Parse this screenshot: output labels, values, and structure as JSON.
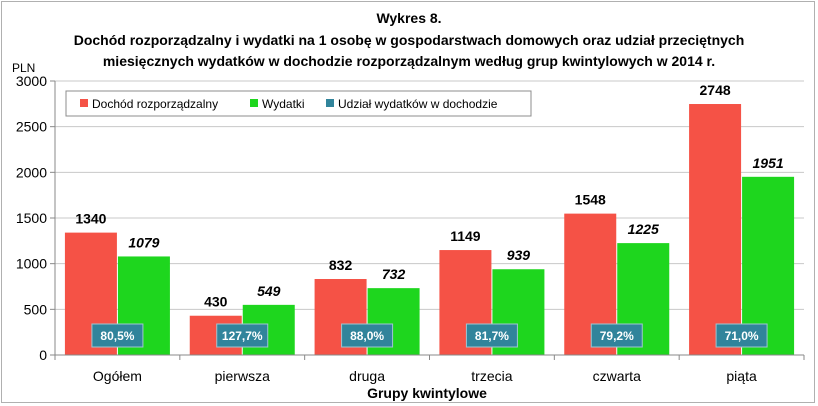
{
  "chart_data": {
    "type": "bar",
    "title_line1": "Wykres 8.",
    "title_line2": "Dochód rozporządzalny i wydatki na 1 osobę w gospodarstwach domowych oraz udział przeciętnych",
    "title_line3": "miesięcznych wydatków w dochodzie rozporządzalnym według grup kwintylowych w 2014 r.",
    "ylabel": "PLN",
    "xlabel": "Grupy kwintylowe",
    "ylim": [
      0,
      3000
    ],
    "yticks": [
      "0",
      "500",
      "1000",
      "1500",
      "2000",
      "2500",
      "3000"
    ],
    "grid": true,
    "legend_position": "top-left",
    "categories": [
      "Ogółem",
      "pierwsza",
      "druga",
      "trzecia",
      "czwarta",
      "piąta"
    ],
    "series": [
      {
        "name": "Dochód rozporządzalny",
        "color": "#f55246",
        "values": [
          1340,
          430,
          832,
          1149,
          1548,
          2748
        ],
        "labels": [
          "1340",
          "430",
          "832",
          "1149",
          "1548",
          "2748"
        ]
      },
      {
        "name": "Wydatki",
        "color": "#1ed61e",
        "values": [
          1079,
          549,
          732,
          939,
          1225,
          1951
        ],
        "labels": [
          "1079",
          "549",
          "732",
          "939",
          "1225",
          "1951"
        ]
      },
      {
        "name": "Udział wydatków w dochodzie",
        "color": "#31849b",
        "values": [
          80.5,
          127.7,
          88.0,
          81.7,
          79.2,
          71.0
        ],
        "labels": [
          "80,5%",
          "127,7%",
          "88,0%",
          "81,7%",
          "79,2%",
          "71,0%"
        ]
      }
    ]
  }
}
